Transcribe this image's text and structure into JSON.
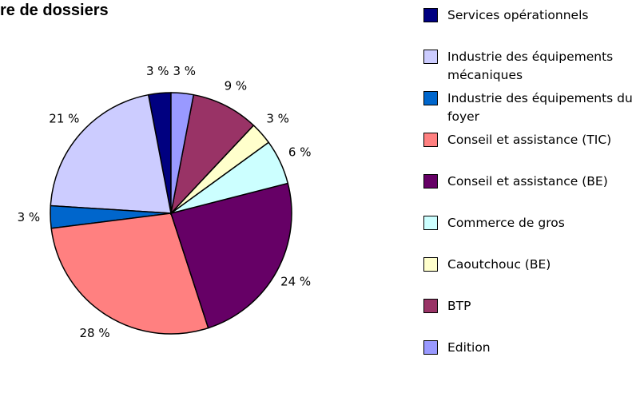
{
  "chart_data": {
    "type": "pie",
    "title": "re de dossiers",
    "series": [
      {
        "name": "Services opérationnels",
        "color": "#000080",
        "values": [
          3
        ],
        "value_labels": [
          "3 %"
        ]
      },
      {
        "name": "Industrie des équipements mécaniques",
        "color": "#ccccff",
        "values": [
          21
        ],
        "value_labels": [
          "21 %"
        ]
      },
      {
        "name": "Industrie des équipements du foyer",
        "color": "#0066cc",
        "values": [
          3
        ],
        "value_labels": [
          "3 %"
        ]
      },
      {
        "name": "Conseil et assistance (TIC)",
        "color": "#ff8080",
        "values": [
          28
        ],
        "value_labels": [
          "28 %"
        ]
      },
      {
        "name": "Conseil et assistance (BE)",
        "color": "#660066",
        "values": [
          24
        ],
        "value_labels": [
          "24 %"
        ]
      },
      {
        "name": "Commerce de gros",
        "color": "#ccffff",
        "values": [
          6
        ],
        "value_labels": [
          "6 %"
        ]
      },
      {
        "name": "Caoutchouc (BE)",
        "color": "#ffffcc",
        "values": [
          3
        ],
        "value_labels": [
          "3 %"
        ]
      },
      {
        "name": "BTP",
        "color": "#993366",
        "values": [
          9
        ],
        "value_labels": [
          "9 %"
        ]
      },
      {
        "name": "Edition",
        "color": "#9999ff",
        "values": [
          3
        ],
        "value_labels": [
          "3 %"
        ]
      }
    ],
    "legend": "right"
  }
}
